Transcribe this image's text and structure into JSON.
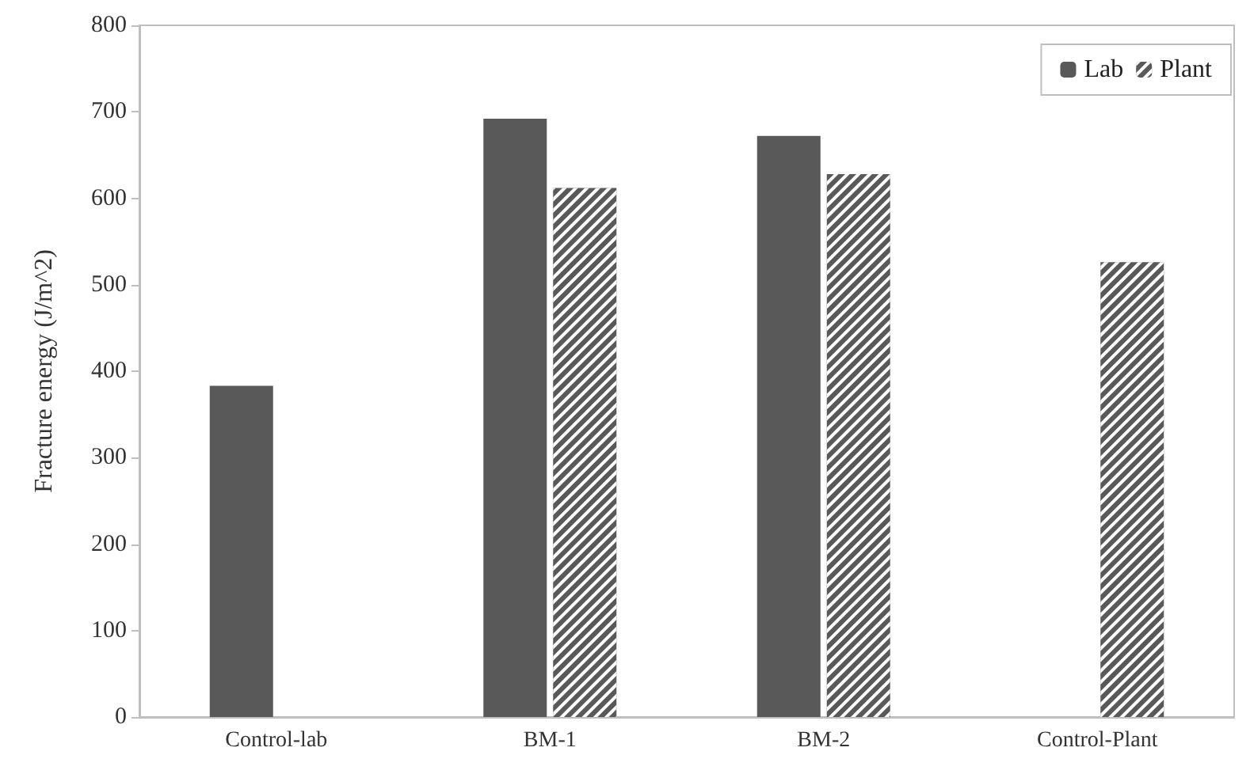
{
  "chart_data": {
    "type": "bar",
    "ylabel": "Fracture energy (J/m^2)",
    "categories": [
      "Control-lab",
      "BM-1",
      "BM-2",
      "Control-Plant"
    ],
    "series": [
      {
        "name": "Lab",
        "color": "#595959",
        "values": [
          383,
          692,
          672,
          null
        ]
      },
      {
        "name": "Plant",
        "color": "#595959",
        "values": [
          null,
          612,
          628,
          526
        ]
      }
    ],
    "ylim": [
      0,
      800
    ],
    "yticks": [
      0,
      100,
      200,
      300,
      400,
      500,
      600,
      700,
      800
    ],
    "grid": false,
    "legend": "top right"
  }
}
